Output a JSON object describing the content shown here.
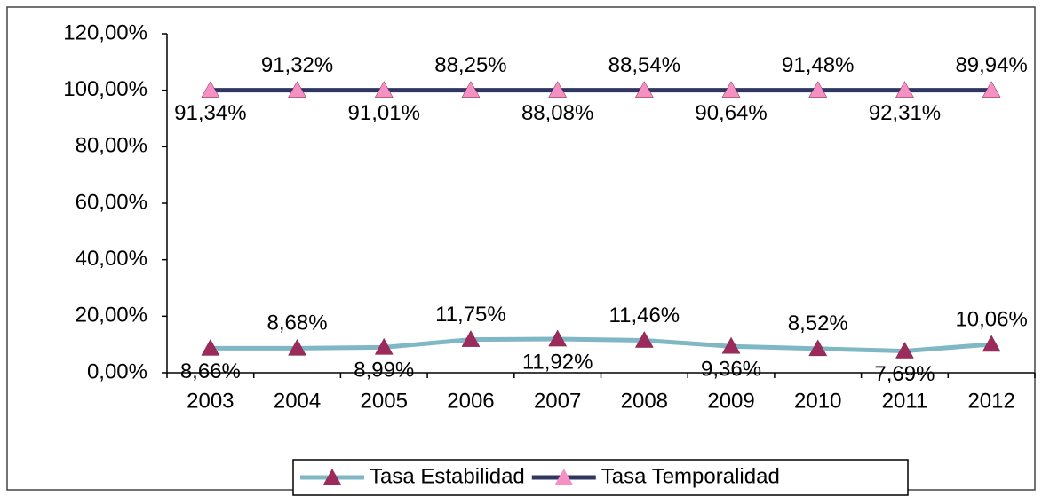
{
  "chart_data": {
    "type": "line",
    "stacked": true,
    "categories": [
      "2003",
      "2004",
      "2005",
      "2006",
      "2007",
      "2008",
      "2009",
      "2010",
      "2011",
      "2012"
    ],
    "series": [
      {
        "name": "Tasa Estabilidad",
        "color": "#7fb8c4",
        "marker_color": "#9c2b5c",
        "values": [
          8.66,
          8.68,
          8.99,
          11.75,
          11.92,
          11.46,
          9.36,
          8.52,
          7.69,
          10.06
        ],
        "value_labels": [
          "8,66%",
          "8,68%",
          "8,99%",
          "11,75%",
          "11,92%",
          "11,46%",
          "9,36%",
          "8,52%",
          "7,69%",
          "10,06%"
        ]
      },
      {
        "name": "Tasa Temporalidad",
        "color": "#2f3662",
        "marker_color": "#f590c2",
        "values": [
          91.34,
          91.32,
          91.01,
          88.25,
          88.08,
          88.54,
          90.64,
          91.48,
          92.31,
          89.94
        ],
        "value_labels": [
          "91,34%",
          "91,32%",
          "91,01%",
          "88,25%",
          "88,08%",
          "88,54%",
          "90,64%",
          "91,48%",
          "92,31%",
          "89,94%"
        ]
      }
    ],
    "ylim": [
      0,
      120
    ],
    "yticks": [
      {
        "value": 0,
        "label": "0,00%"
      },
      {
        "value": 20,
        "label": "20,00%"
      },
      {
        "value": 40,
        "label": "40,00%"
      },
      {
        "value": 60,
        "label": "60,00%"
      },
      {
        "value": 80,
        "label": "80,00%"
      },
      {
        "value": 100,
        "label": "100,00%"
      },
      {
        "value": 120,
        "label": "120,00%"
      }
    ],
    "grid": false,
    "legend": "bottom"
  }
}
